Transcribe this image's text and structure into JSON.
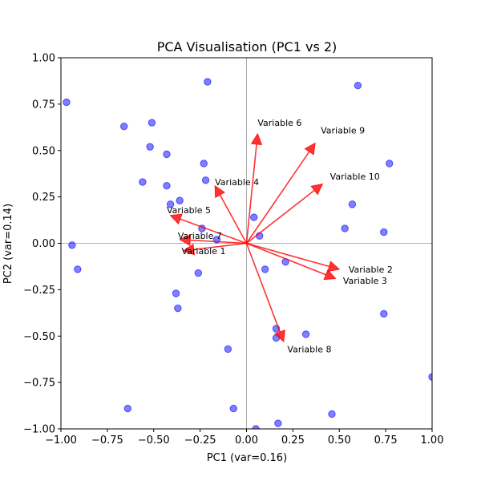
{
  "chart_data": {
    "type": "scatter",
    "title": "PCA Visualisation (PC1 vs 2)",
    "xlabel": "PC1 (var=0.16)",
    "ylabel": "PC2 (var=0.14)",
    "xlim": [
      -1.0,
      1.0
    ],
    "ylim": [
      -1.0,
      1.0
    ],
    "xticks": [
      "−1.00",
      "−0.75",
      "−0.50",
      "−0.25",
      "0.00",
      "0.25",
      "0.50",
      "0.75",
      "1.00"
    ],
    "yticks": [
      "−1.00",
      "−0.75",
      "−0.50",
      "−0.25",
      "0.00",
      "0.25",
      "0.50",
      "0.75",
      "1.00"
    ],
    "grid": false,
    "reference_lines": [
      0,
      0
    ],
    "colors": {
      "points": "#0000ff",
      "arrows": "#ff0000"
    },
    "points": [
      {
        "x": -0.97,
        "y": 0.76
      },
      {
        "x": -0.21,
        "y": 0.87
      },
      {
        "x": 0.6,
        "y": 0.85
      },
      {
        "x": -0.66,
        "y": 0.63
      },
      {
        "x": -0.51,
        "y": 0.65
      },
      {
        "x": -0.52,
        "y": 0.52
      },
      {
        "x": -0.43,
        "y": 0.48
      },
      {
        "x": -0.23,
        "y": 0.43
      },
      {
        "x": 0.77,
        "y": 0.43
      },
      {
        "x": -0.56,
        "y": 0.33
      },
      {
        "x": -0.22,
        "y": 0.34
      },
      {
        "x": -0.43,
        "y": 0.31
      },
      {
        "x": -0.36,
        "y": 0.23
      },
      {
        "x": -0.41,
        "y": 0.21
      },
      {
        "x": 0.57,
        "y": 0.21
      },
      {
        "x": 0.04,
        "y": 0.14
      },
      {
        "x": 0.53,
        "y": 0.08
      },
      {
        "x": -0.24,
        "y": 0.08
      },
      {
        "x": 0.74,
        "y": 0.06
      },
      {
        "x": 0.07,
        "y": 0.04
      },
      {
        "x": -0.16,
        "y": 0.02
      },
      {
        "x": -0.94,
        "y": -0.01
      },
      {
        "x": 0.21,
        "y": -0.1
      },
      {
        "x": -0.91,
        "y": -0.14
      },
      {
        "x": 0.1,
        "y": -0.14
      },
      {
        "x": -0.26,
        "y": -0.16
      },
      {
        "x": -0.38,
        "y": -0.27
      },
      {
        "x": -0.37,
        "y": -0.35
      },
      {
        "x": 0.74,
        "y": -0.38
      },
      {
        "x": 0.16,
        "y": -0.46
      },
      {
        "x": 0.32,
        "y": -0.49
      },
      {
        "x": 0.16,
        "y": -0.51
      },
      {
        "x": -0.1,
        "y": -0.57
      },
      {
        "x": 1.0,
        "y": -0.72
      },
      {
        "x": -0.64,
        "y": -0.89
      },
      {
        "x": -0.07,
        "y": -0.89
      },
      {
        "x": 0.46,
        "y": -0.92
      },
      {
        "x": 0.17,
        "y": -0.97
      },
      {
        "x": 0.05,
        "y": -1.0
      }
    ],
    "loadings": [
      {
        "label": "Variable 1",
        "x": -0.34,
        "y": -0.04,
        "lx": -0.35,
        "ly": -0.04
      },
      {
        "label": "Variable 2",
        "x": 0.5,
        "y": -0.14,
        "lx": 0.55,
        "ly": -0.14
      },
      {
        "label": "Variable 3",
        "x": 0.48,
        "y": -0.19,
        "lx": 0.52,
        "ly": -0.2
      },
      {
        "label": "Variable 4",
        "x": -0.17,
        "y": 0.31,
        "lx": -0.17,
        "ly": 0.33
      },
      {
        "label": "Variable 5",
        "x": -0.41,
        "y": 0.15,
        "lx": -0.43,
        "ly": 0.18
      },
      {
        "label": "Variable 6",
        "x": 0.06,
        "y": 0.59,
        "lx": 0.06,
        "ly": 0.65
      },
      {
        "label": "Variable 7",
        "x": -0.36,
        "y": 0.02,
        "lx": -0.37,
        "ly": 0.04
      },
      {
        "label": "Variable 8",
        "x": 0.2,
        "y": -0.53,
        "lx": 0.22,
        "ly": -0.57
      },
      {
        "label": "Variable 9",
        "x": 0.37,
        "y": 0.54,
        "lx": 0.4,
        "ly": 0.61
      },
      {
        "label": "Variable 10",
        "x": 0.41,
        "y": 0.32,
        "lx": 0.45,
        "ly": 0.36
      }
    ]
  }
}
